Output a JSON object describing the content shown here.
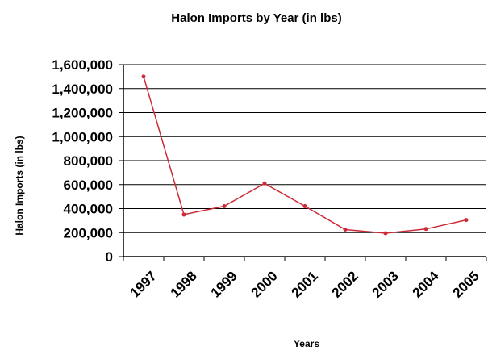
{
  "chart_data": {
    "type": "line",
    "title": "Halon Imports by Year (in lbs)",
    "xlabel": "Years",
    "ylabel": "Halon Imports (in lbs)",
    "categories": [
      "1997",
      "1998",
      "1999",
      "2000",
      "2001",
      "2002",
      "2003",
      "2004",
      "2005"
    ],
    "series": [
      {
        "values": [
          1500000,
          350000,
          420000,
          610000,
          420000,
          225000,
          195000,
          230000,
          305000
        ]
      }
    ],
    "ylim": [
      0,
      1600000
    ],
    "yticks": [
      "0",
      "200,000",
      "400,000",
      "600,000",
      "800,000",
      "1,000,000",
      "1,200,000",
      "1,400,000",
      "1,600,000"
    ],
    "ytick_values": [
      0,
      200000,
      400000,
      600000,
      800000,
      1000000,
      1200000,
      1400000,
      1600000
    ],
    "grid": true,
    "legend": "none",
    "colors": {
      "line": "#cc2a36",
      "grid": "#000000",
      "axis": "#000000"
    }
  }
}
